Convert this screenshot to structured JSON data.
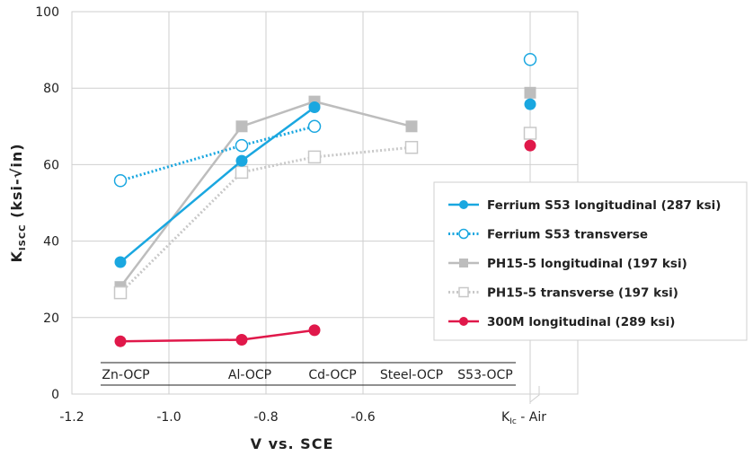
{
  "chart_data": {
    "type": "line",
    "xlabel": "V vs. SCE",
    "ylabel": {
      "main": "K",
      "sub": "ISCC",
      "unit": "(ksi-√in)"
    },
    "xlim": [
      -1.2,
      0.0
    ],
    "ylim": [
      0,
      100
    ],
    "x_ticks": [
      "-1.2",
      "-1.0",
      "-0.8",
      "-0.6"
    ],
    "x_tick_values": [
      -1.2,
      -1.0,
      -0.8,
      -0.6
    ],
    "y_ticks": [
      "0",
      "20",
      "40",
      "60",
      "80",
      "100"
    ],
    "y_tick_values": [
      0,
      20,
      40,
      60,
      80,
      100
    ],
    "kic_label": {
      "main": "K",
      "sub": "Ic",
      "suffix": " - Air"
    },
    "categories": [
      "Zn-OCP",
      "Al-OCP",
      "Cd-OCP",
      "Steel-OCP",
      "S53-OCP"
    ],
    "grid": true,
    "legend_position": "right",
    "series": [
      {
        "name": "Ferrium S53 longitudinal (287 ksi)",
        "color": "#1aa7e0",
        "marker": "circle-filled",
        "line": "solid",
        "x": [
          -1.1,
          -0.85,
          -0.7
        ],
        "y": [
          34.5,
          61,
          75
        ],
        "air": 75.8
      },
      {
        "name": "Ferrium S53 transverse",
        "color": "#1aa7e0",
        "marker": "circle-open",
        "line": "dotted",
        "x": [
          -1.1,
          -0.85,
          -0.7
        ],
        "y": [
          55.8,
          65,
          70
        ],
        "air": 87.5
      },
      {
        "name": "PH15-5 longitudinal (197 ksi)",
        "color": "#bdbdbd",
        "marker": "square-filled",
        "line": "solid",
        "x": [
          -1.1,
          -0.85,
          -0.7,
          -0.5
        ],
        "y": [
          28,
          70,
          76.5,
          70
        ],
        "air": 78.8
      },
      {
        "name": "PH15-5 transverse (197 ksi)",
        "color": "#c8c8c8",
        "marker": "square-open",
        "line": "dotted",
        "x": [
          -1.1,
          -0.85,
          -0.7,
          -0.5
        ],
        "y": [
          26.5,
          58,
          62,
          64.5
        ],
        "air": 68.2
      },
      {
        "name": "300M longitudinal (289 ksi)",
        "color": "#e0184a",
        "marker": "circle-filled",
        "line": "solid",
        "x": [
          -1.1,
          -0.85,
          -0.7
        ],
        "y": [
          13.8,
          14.2,
          16.7
        ],
        "air": 65
      }
    ]
  }
}
